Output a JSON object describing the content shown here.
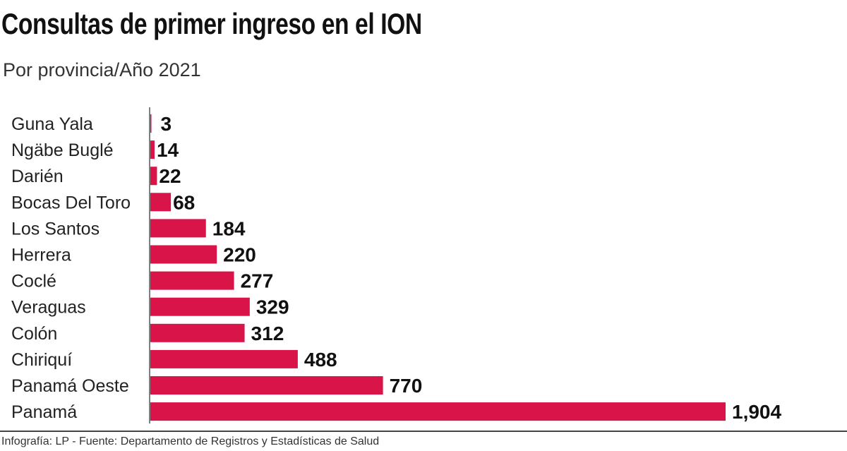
{
  "chart_data": {
    "type": "bar",
    "orientation": "horizontal",
    "title": "Consultas de primer ingreso en el ION",
    "subtitle": "Por provincia/Año 2021",
    "categories": [
      "Guna Yala",
      "Ngäbe Buglé",
      "Darién",
      "Bocas Del Toro",
      "Los Santos",
      "Herrera",
      "Coclé",
      "Veraguas",
      "Colón",
      "Chiriquí",
      "Panamá Oeste",
      "Panamá"
    ],
    "values": [
      3,
      14,
      22,
      68,
      184,
      220,
      277,
      329,
      312,
      488,
      770,
      1904
    ],
    "value_labels": [
      "3",
      "14",
      "22",
      "68",
      "184",
      "220",
      "277",
      "329",
      "312",
      "488",
      "770",
      "1,904"
    ],
    "xlim": [
      0,
      1904
    ],
    "grid": false,
    "bar_color": "#d81448",
    "xlabel": "",
    "ylabel": ""
  },
  "source": "Infografía: LP - Fuente: Departamento de Registros y Estadísticas de Salud"
}
